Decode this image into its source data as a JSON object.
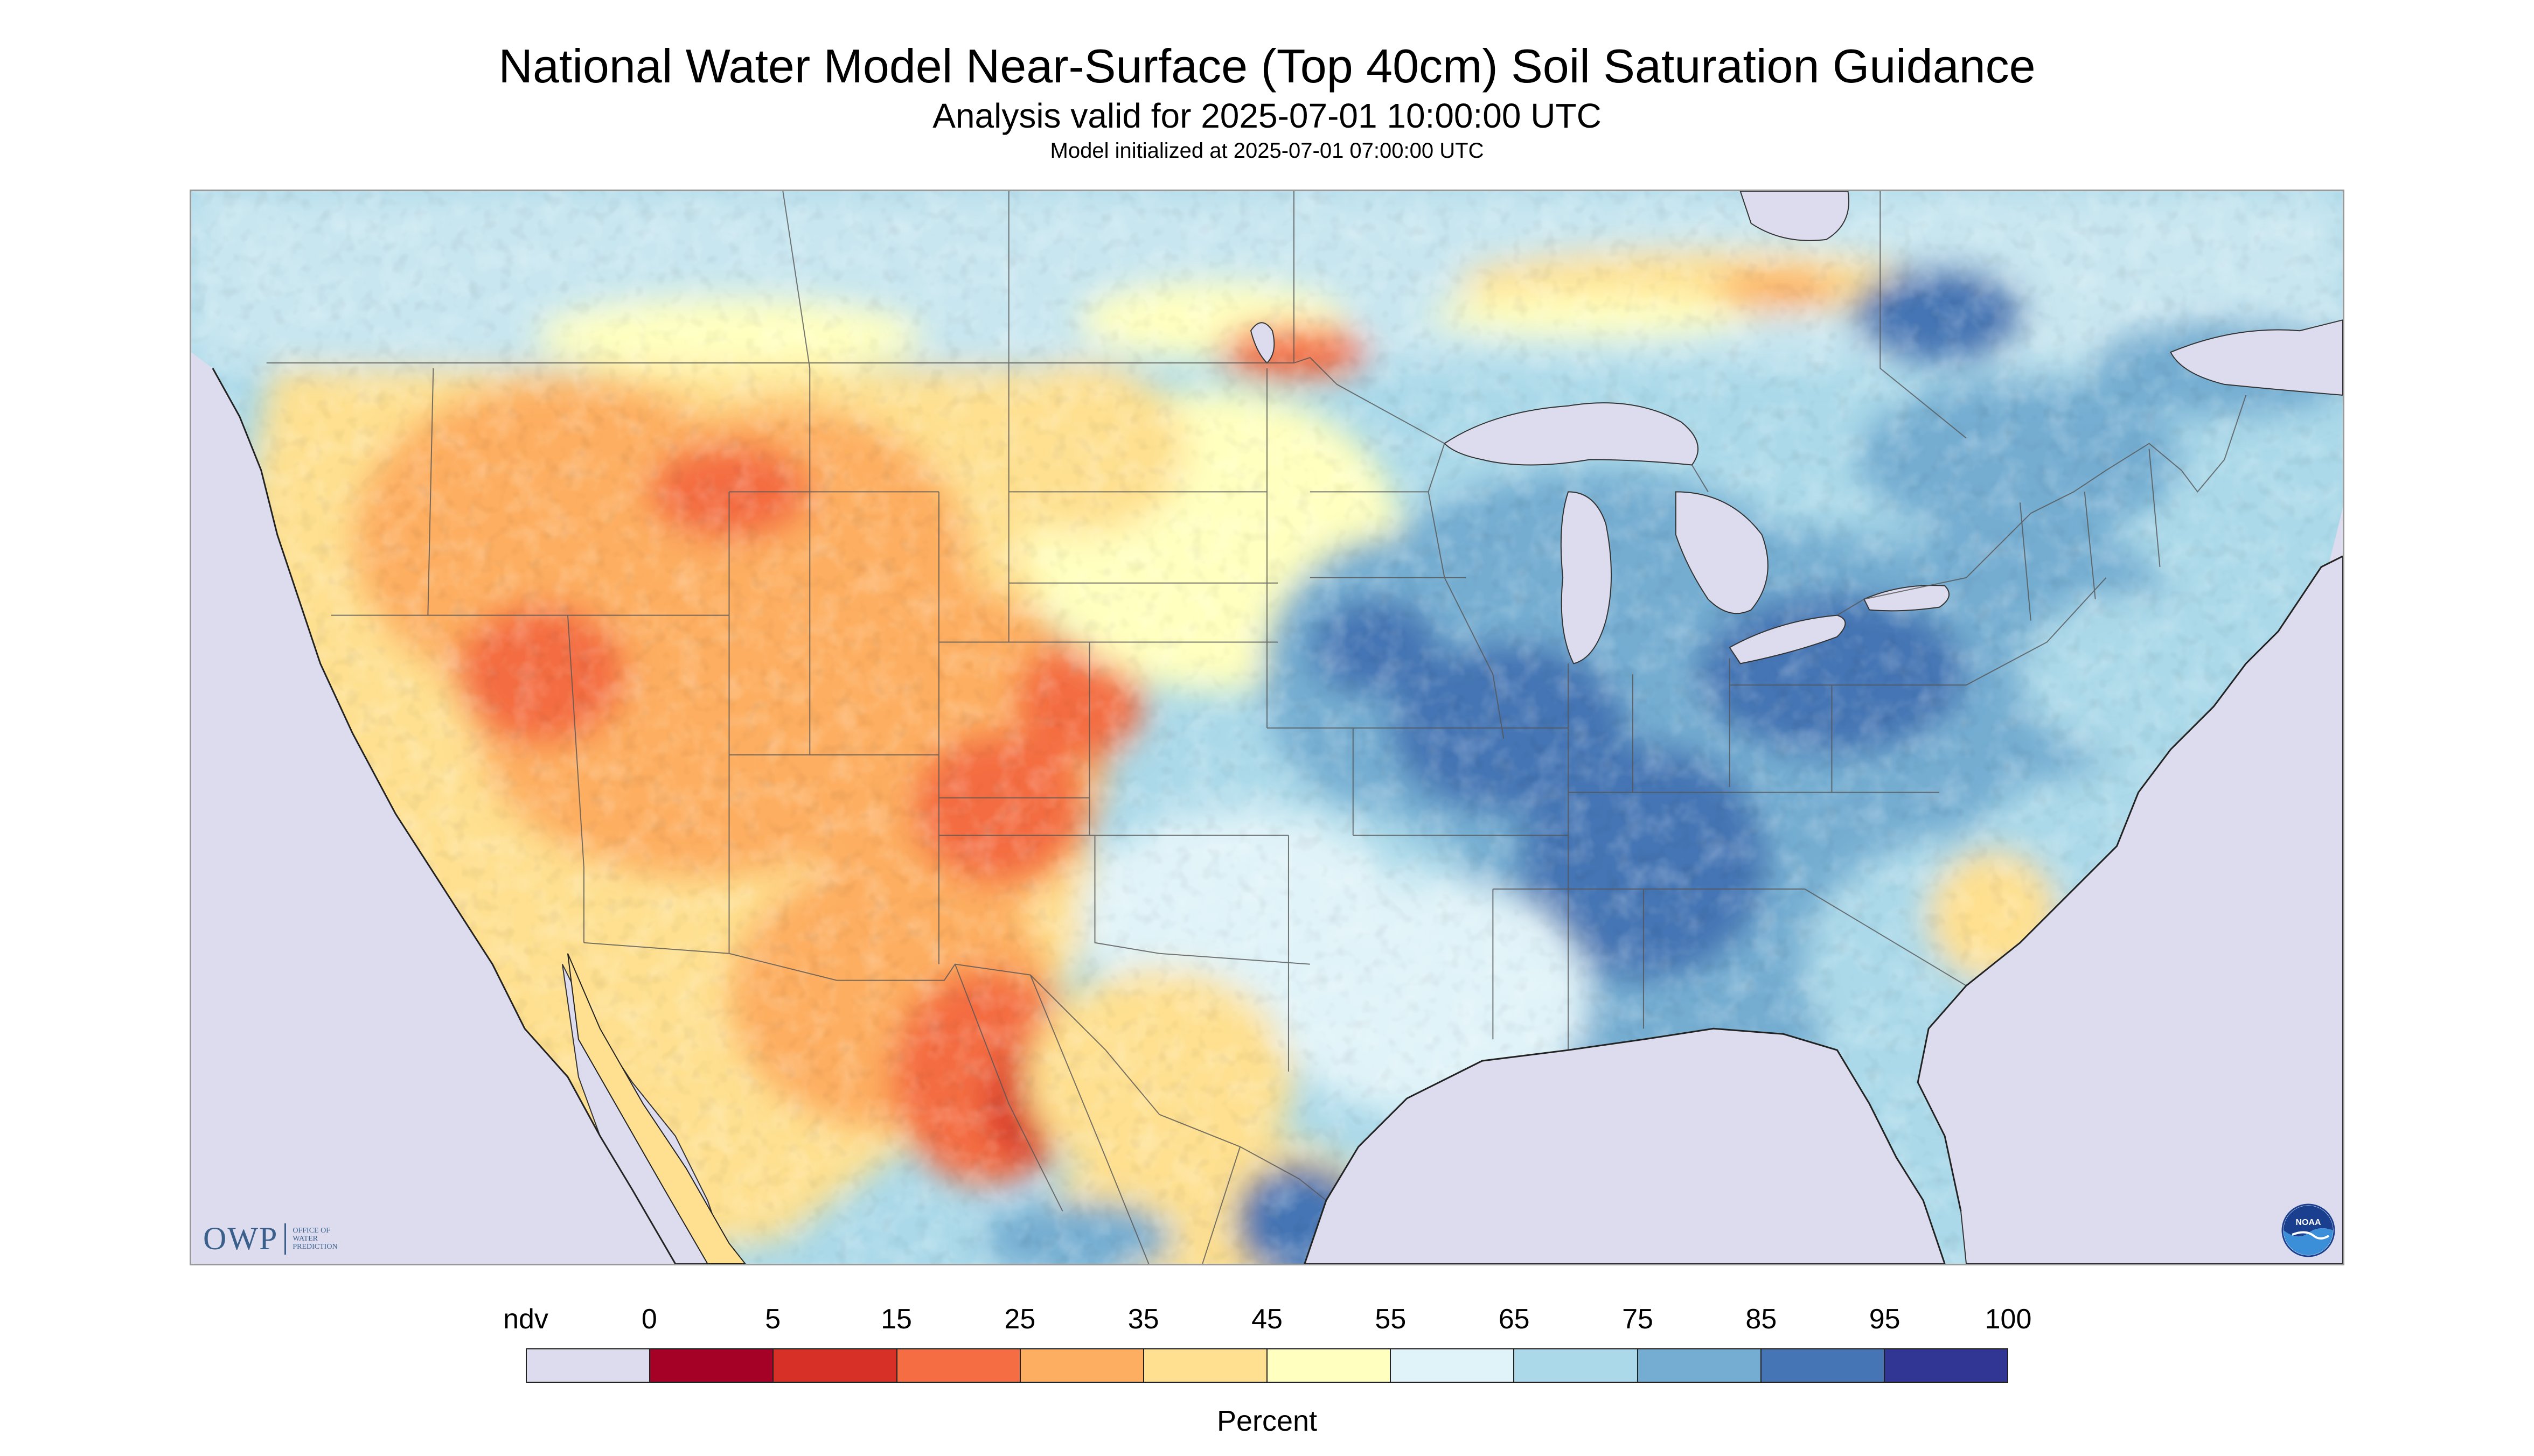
{
  "title": "National Water Model Near-Surface (Top 40cm) Soil Saturation Guidance",
  "subtitle": "Analysis valid for 2025-07-01 10:00:00 UTC",
  "init_text": "Model initialized at 2025-07-01 07:00:00 UTC",
  "logos": {
    "owp": "OWP",
    "owp_sub": [
      "OFFICE OF",
      "WATER",
      "PREDICTION"
    ],
    "noaa": "NOAA"
  },
  "legend": {
    "labels": [
      "ndv",
      "0",
      "5",
      "15",
      "25",
      "35",
      "45",
      "55",
      "65",
      "75",
      "85",
      "95",
      "100"
    ],
    "colors": [
      "#dcdcee",
      "#a50026",
      "#d73027",
      "#f46d43",
      "#fdae61",
      "#fee090",
      "#ffffbf",
      "#e0f3f8",
      "#abd9e9",
      "#74add1",
      "#4575b4",
      "#313695"
    ],
    "units": "Percent"
  },
  "map": {
    "nodata_color": "#dcdcee",
    "water_color": "#dcdcee",
    "boundary_color": "#555555"
  }
}
